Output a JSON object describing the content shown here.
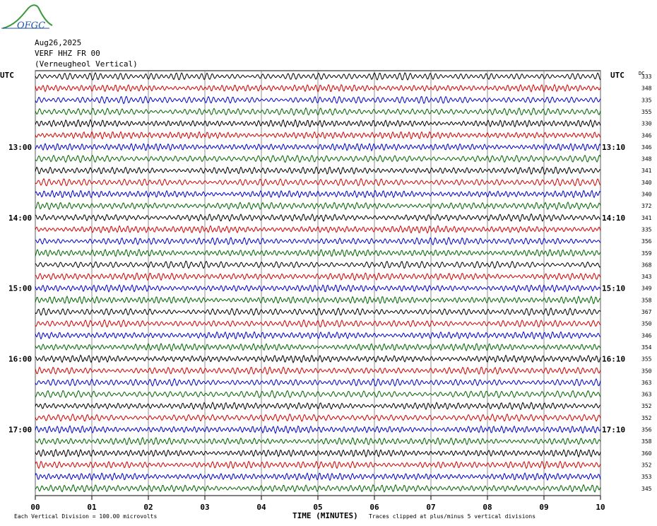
{
  "header": {
    "logo_text": "OFGC",
    "date": "Aug26,2025",
    "station": "VERF HHZ FR 00",
    "station_desc": "(Verneugheol Vertical)"
  },
  "chart_data": {
    "type": "line",
    "title": "",
    "left_axis_label": "UTC",
    "right_axis_label": "UTC",
    "dc_label": "DC",
    "xlabel": "TIME (MINUTES)",
    "x_ticks": [
      "00",
      "01",
      "02",
      "03",
      "04",
      "05",
      "06",
      "07",
      "08",
      "09",
      "10"
    ],
    "xlim": [
      0,
      10
    ],
    "left_hour_labels": [
      {
        "trace": 6,
        "label": "13:00"
      },
      {
        "trace": 12,
        "label": "14:00"
      },
      {
        "trace": 18,
        "label": "15:00"
      },
      {
        "trace": 24,
        "label": "16:00"
      },
      {
        "trace": 30,
        "label": "17:00"
      }
    ],
    "right_hour_labels": [
      {
        "trace": 6,
        "label": "13:10"
      },
      {
        "trace": 12,
        "label": "14:10"
      },
      {
        "trace": 18,
        "label": "15:10"
      },
      {
        "trace": 24,
        "label": "16:10"
      },
      {
        "trace": 30,
        "label": "17:10"
      }
    ],
    "trace_colors": [
      "#000000",
      "#d40000",
      "#0000cc",
      "#006600"
    ],
    "dc_offsets": [
      333,
      348,
      335,
      355,
      330,
      346,
      346,
      348,
      341,
      340,
      340,
      372,
      341,
      335,
      356,
      359,
      368,
      343,
      349,
      358,
      367,
      350,
      346,
      354,
      355,
      350,
      363,
      363,
      352,
      352,
      356,
      358,
      360,
      352,
      353,
      345
    ],
    "footer_left": "Each Vertical Division =  100.00 microvolts",
    "footer_right": "Traces clipped at plus/minus 5 vertical divisions"
  }
}
